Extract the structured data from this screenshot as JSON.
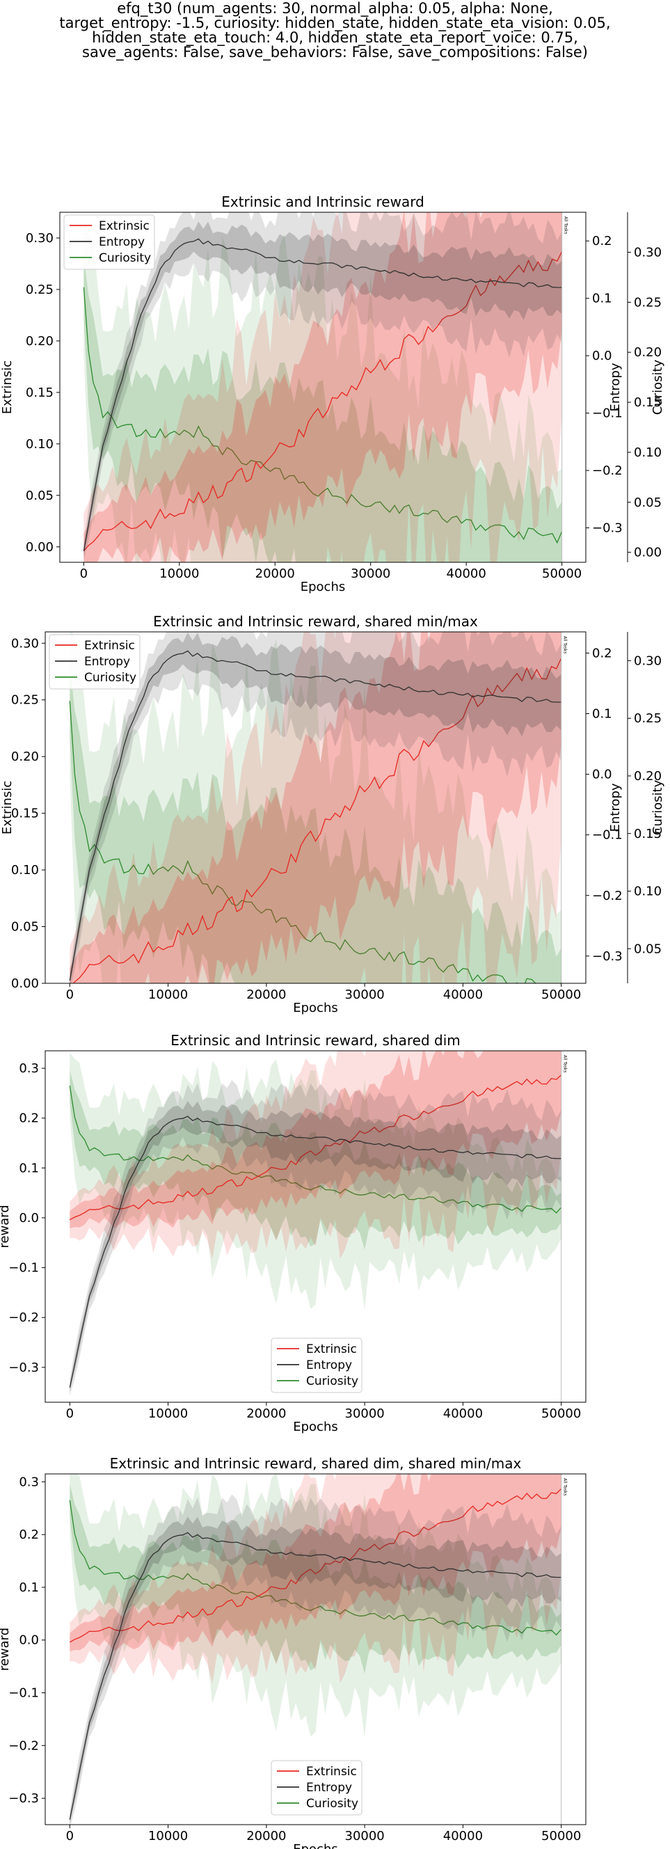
{
  "suptitle_lines": [
    "efq_t30 (num_agents: 30, normal_alpha: 0.05, alpha: None,",
    "target_entropy: -1.5, curiosity: hidden_state, hidden_state_eta_vision: 0.05,",
    "hidden_state_eta_touch: 4.0, hidden_state_eta_report_voice: 0.75,",
    "save_agents: False, save_behaviors: False, save_compositions: False)"
  ],
  "colors": {
    "extrinsic": "#e8261f",
    "entropy": "#303030",
    "curiosity": "#2e8b2e"
  },
  "chart_data": [
    {
      "type": "line",
      "title": "Extrinsic and Intrinsic reward",
      "xlabel": "Epochs",
      "ylabels": {
        "left": "Extrinsic",
        "entropy": "Entropy",
        "curiosity": "Curiosity"
      },
      "legend": [
        "Extrinsic",
        "Entropy",
        "Curiosity"
      ],
      "legend_loc": "upper left",
      "vline_label": "All Tasks",
      "xlim": [
        -2500,
        52500
      ],
      "xticks": [
        0,
        10000,
        20000,
        30000,
        40000,
        50000
      ],
      "ylim_left": [
        -0.015,
        0.325
      ],
      "yticks_left": [
        "0.00",
        "0.05",
        "0.10",
        "0.15",
        "0.20",
        "0.25",
        "0.30"
      ],
      "ylim_entropy": [
        -0.36,
        0.25
      ],
      "yticks_entropy": [
        "-0.3",
        "-0.2",
        "-0.1",
        "0.0",
        "0.1",
        "0.2"
      ],
      "ylim_curiosity": [
        -0.01,
        0.34
      ],
      "yticks_curiosity": [
        "0.00",
        "0.05",
        "0.10",
        "0.15",
        "0.20",
        "0.25",
        "0.30"
      ]
    },
    {
      "type": "line",
      "title": "Extrinsic and Intrinsic reward, shared min/max",
      "xlabel": "Epochs",
      "ylabels": {
        "left": "Extrinsic",
        "entropy": "Entropy",
        "curiosity": "Curiosity"
      },
      "legend": [
        "Extrinsic",
        "Entropy",
        "Curiosity"
      ],
      "legend_loc": "upper left",
      "vline_label": "All Tasks",
      "xlim": [
        -2500,
        52500
      ],
      "xticks": [
        0,
        10000,
        20000,
        30000,
        40000,
        50000
      ],
      "ylim_left": [
        0.0,
        0.31
      ],
      "yticks_left": [
        "0.00",
        "0.05",
        "0.10",
        "0.15",
        "0.20",
        "0.25",
        "0.30"
      ],
      "ylim_entropy": [
        -0.345,
        0.235
      ],
      "yticks_entropy": [
        "-0.3",
        "-0.2",
        "-0.1",
        "0.0",
        "0.1",
        "0.2"
      ],
      "ylim_curiosity": [
        0.02,
        0.325
      ],
      "yticks_curiosity": [
        "0.05",
        "0.10",
        "0.15",
        "0.20",
        "0.25",
        "0.30"
      ]
    },
    {
      "type": "line",
      "title": "Extrinsic and Intrinsic reward, shared dim",
      "xlabel": "Epochs",
      "ylabel": "reward",
      "legend": [
        "Extrinsic",
        "Entropy",
        "Curiosity"
      ],
      "legend_loc": "lower center",
      "vline_label": "All Tasks",
      "xlim": [
        -2500,
        52500
      ],
      "xticks": [
        0,
        10000,
        20000,
        30000,
        40000,
        50000
      ],
      "ylim": [
        -0.37,
        0.335
      ],
      "yticks": [
        "-0.3",
        "-0.2",
        "-0.1",
        "0.0",
        "0.1",
        "0.2",
        "0.3"
      ]
    },
    {
      "type": "line",
      "title": "Extrinsic and Intrinsic reward, shared dim, shared min/max",
      "xlabel": "Epochs",
      "ylabel": "reward",
      "legend": [
        "Extrinsic",
        "Entropy",
        "Curiosity"
      ],
      "legend_loc": "lower center",
      "vline_label": "All Tasks",
      "xlim": [
        -2500,
        52500
      ],
      "xticks": [
        0,
        10000,
        20000,
        30000,
        40000,
        50000
      ],
      "ylim": [
        -0.35,
        0.315
      ],
      "yticks": [
        "-0.3",
        "-0.2",
        "-0.1",
        "0.0",
        "0.1",
        "0.2",
        "0.3"
      ]
    }
  ],
  "series": {
    "epochs_step": 500,
    "extrinsic": {
      "x": [
        0,
        5000,
        10000,
        15000,
        20000,
        25000,
        30000,
        35000,
        40000,
        45000,
        50000
      ],
      "y": [
        0.005,
        0.02,
        0.035,
        0.06,
        0.09,
        0.13,
        0.17,
        0.205,
        0.24,
        0.265,
        0.28
      ],
      "band": [
        0.015,
        0.03,
        0.04,
        0.05,
        0.06,
        0.07,
        0.085,
        0.1,
        0.11,
        0.1,
        0.08
      ]
    },
    "entropy": {
      "x": [
        0,
        2000,
        4000,
        6000,
        8000,
        10000,
        12000,
        15000,
        20000,
        25000,
        30000,
        35000,
        40000,
        45000,
        50000
      ],
      "y": [
        -0.34,
        -0.16,
        -0.04,
        0.07,
        0.15,
        0.19,
        0.2,
        0.19,
        0.17,
        0.16,
        0.15,
        0.14,
        0.13,
        0.125,
        0.12
      ],
      "band": [
        0.01,
        0.02,
        0.02,
        0.02,
        0.02,
        0.02,
        0.025,
        0.03,
        0.035,
        0.04,
        0.04,
        0.045,
        0.045,
        0.045,
        0.045
      ]
    },
    "curiosity": {
      "x": [
        0,
        500,
        1000,
        2000,
        4000,
        6000,
        8000,
        10000,
        12000,
        15000,
        20000,
        25000,
        30000,
        35000,
        40000,
        45000,
        50000
      ],
      "y": [
        0.265,
        0.2,
        0.17,
        0.14,
        0.125,
        0.12,
        0.12,
        0.115,
        0.12,
        0.1,
        0.08,
        0.06,
        0.05,
        0.04,
        0.03,
        0.02,
        0.015
      ],
      "band": [
        0.03,
        0.04,
        0.05,
        0.05,
        0.05,
        0.05,
        0.05,
        0.06,
        0.07,
        0.08,
        0.085,
        0.085,
        0.08,
        0.07,
        0.06,
        0.05,
        0.04
      ]
    }
  }
}
